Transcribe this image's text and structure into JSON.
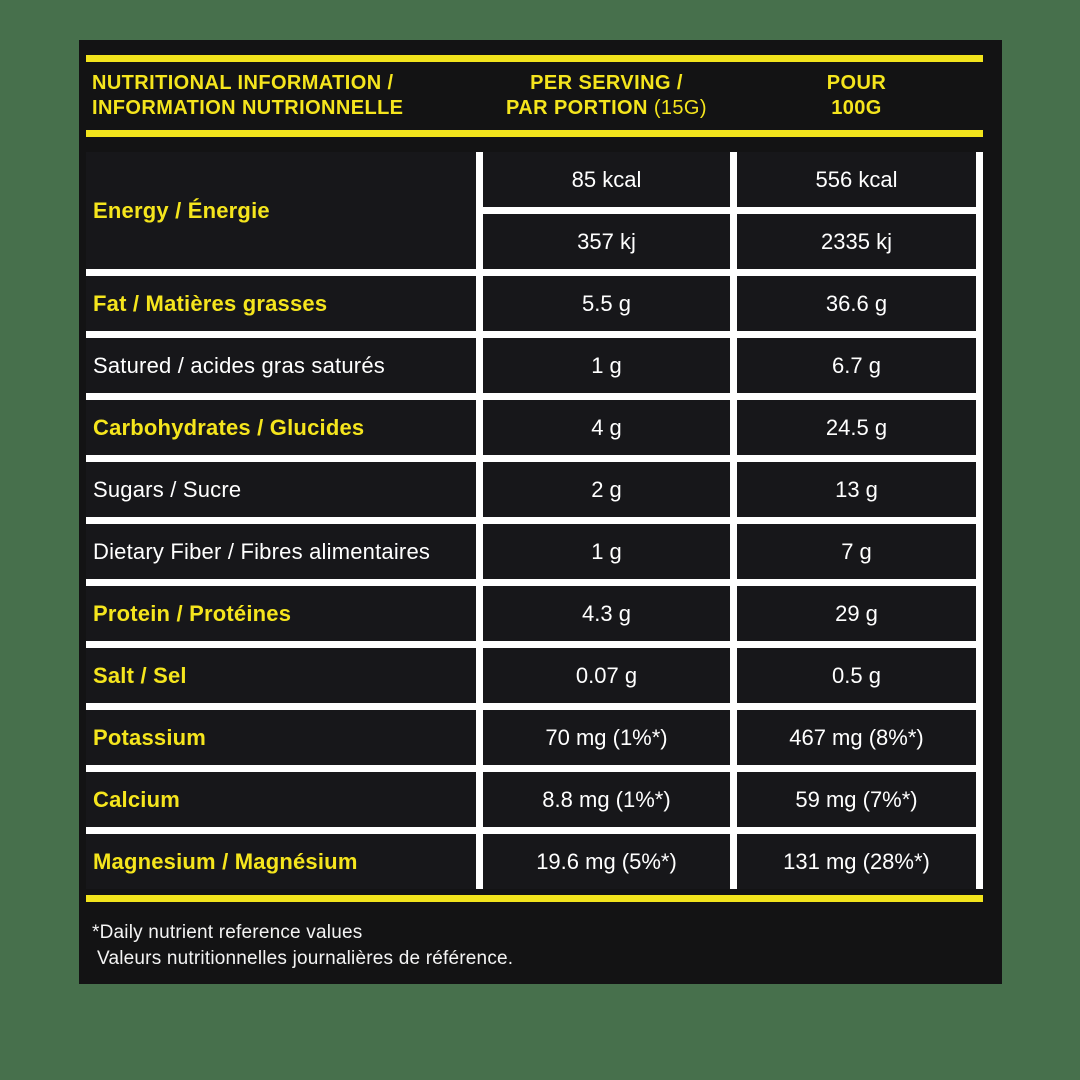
{
  "colors": {
    "background_green": "#47704C",
    "card_black": "#131314",
    "cell_black": "#17171A",
    "accent_yellow": "#F2E41C",
    "text_yellow": "#F5E51D",
    "text_white": "#FFFFFF"
  },
  "header": {
    "title_line1": "Nutritional Information /",
    "title_line2": "Information Nutrionnelle",
    "serving_line1": "Per Serving /",
    "serving_line2_bold": "Par Portion",
    "serving_line2_light": "(15G)",
    "per100_line1": "Pour",
    "per100_line2": "100G"
  },
  "table": {
    "rows": [
      {
        "label": "Energy / Énergie",
        "highlight": true,
        "type": "double",
        "values_top": [
          "85 kcal",
          "556 kcal"
        ],
        "values_bottom": [
          "357 kj",
          "2335 kj"
        ]
      },
      {
        "label": "Fat / Matières grasses",
        "highlight": true,
        "type": "single",
        "values": [
          "5.5 g",
          "36.6 g"
        ]
      },
      {
        "label": "Satured / acides gras saturés",
        "highlight": false,
        "type": "single",
        "values": [
          "1 g",
          "6.7 g"
        ]
      },
      {
        "label": "Carbohydrates / Glucides",
        "highlight": true,
        "type": "single",
        "values": [
          "4 g",
          "24.5 g"
        ]
      },
      {
        "label": "Sugars / Sucre",
        "highlight": false,
        "type": "single",
        "values": [
          "2 g",
          "13 g"
        ]
      },
      {
        "label": "Dietary Fiber / Fibres alimentaires",
        "highlight": false,
        "type": "single",
        "values": [
          "1 g",
          "7 g"
        ]
      },
      {
        "label": "Protein / Protéines",
        "highlight": true,
        "type": "single",
        "values": [
          "4.3 g",
          "29 g"
        ]
      },
      {
        "label": "Salt / Sel",
        "highlight": true,
        "type": "single",
        "values": [
          "0.07 g",
          "0.5 g"
        ]
      },
      {
        "label": "Potassium",
        "highlight": true,
        "type": "single",
        "values": [
          "70 mg (1%*)",
          "467 mg (8%*)"
        ]
      },
      {
        "label": "Calcium",
        "highlight": true,
        "type": "single",
        "values": [
          "8.8 mg (1%*)",
          "59 mg (7%*)"
        ]
      },
      {
        "label": "Magnesium / Magnésium",
        "highlight": true,
        "type": "single",
        "values": [
          "19.6 mg (5%*)",
          "131 mg (28%*)"
        ]
      }
    ]
  },
  "footnote": {
    "line1": "*Daily nutrient reference values",
    "line2": "Valeurs nutritionnelles journalières de référence."
  }
}
